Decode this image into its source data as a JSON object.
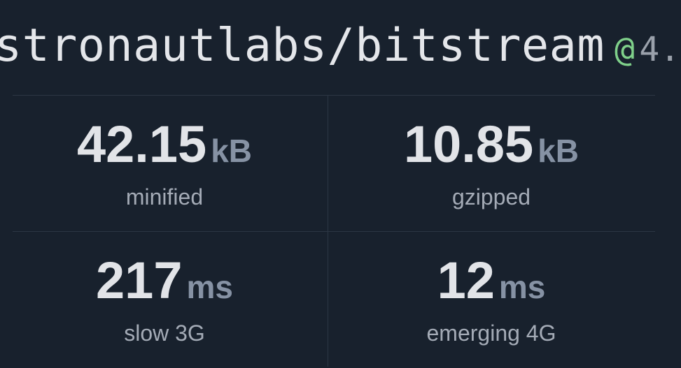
{
  "header": {
    "package": "stronautlabs/bitstream",
    "at": "@",
    "version": "4."
  },
  "stats": [
    {
      "value": "42.15",
      "unit": "kB",
      "label": "minified"
    },
    {
      "value": "10.85",
      "unit": "kB",
      "label": "gzipped"
    },
    {
      "value": "217",
      "unit": "ms",
      "label": "slow 3G"
    },
    {
      "value": "12",
      "unit": "ms",
      "label": "emerging 4G"
    }
  ],
  "colors": {
    "background": "#18212d",
    "accent": "#7fd08a",
    "unit": "#8692a4"
  }
}
